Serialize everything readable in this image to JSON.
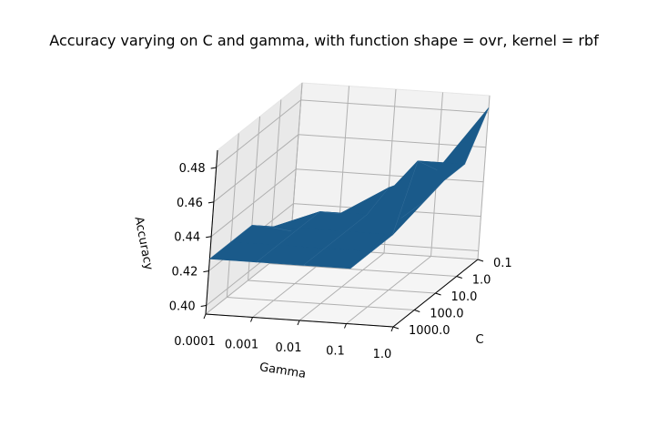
{
  "chart_data": {
    "type": "surface",
    "title": "Accuracy varying on C and gamma, with function shape = ovr, kernel = rbf",
    "xlabel": "Gamma",
    "ylabel": "C",
    "zlabel": "Accuracy",
    "x_ticks": [
      "0.0001",
      "0.001",
      "0.01",
      "0.1",
      "1.0"
    ],
    "y_ticks": [
      "0.1",
      "1.0",
      "10.0",
      "100.0",
      "1000.0"
    ],
    "z_ticks": [
      "0.40",
      "0.42",
      "0.44",
      "0.46",
      "0.48"
    ],
    "zlim": [
      0.395,
      0.49
    ],
    "grid": true,
    "surface_color": "#1a5a8a",
    "accuracy": [
      [
        0.404,
        0.416,
        0.427,
        0.427,
        0.427
      ],
      [
        0.416,
        0.427,
        0.427,
        0.427,
        0.427
      ],
      [
        0.433,
        0.427,
        0.427,
        0.427,
        0.427
      ],
      [
        0.445,
        0.46,
        0.427,
        0.427,
        0.427
      ],
      [
        0.483,
        0.46,
        0.46,
        0.457,
        0.458
      ]
    ]
  }
}
